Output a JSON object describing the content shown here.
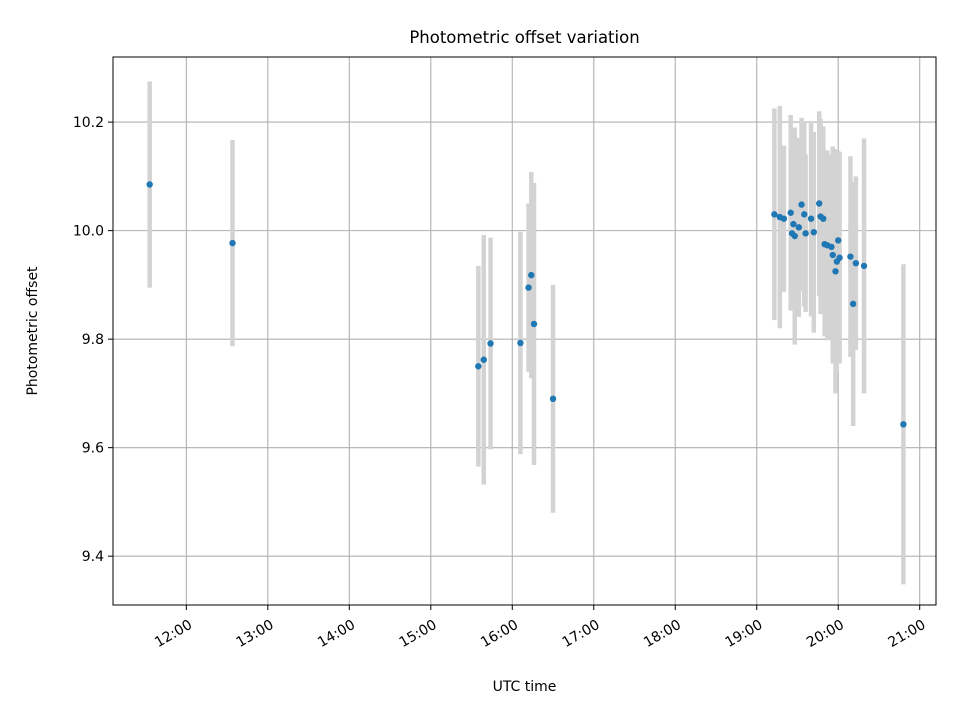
{
  "chart_data": {
    "type": "scatter",
    "title": "Photometric offset variation",
    "xlabel": "UTC time",
    "ylabel": "Photometric offset",
    "xlim": [
      "11:06",
      "21:12"
    ],
    "ylim": [
      9.31,
      10.32
    ],
    "grid": true,
    "x_ticks": [
      "12:00",
      "13:00",
      "14:00",
      "15:00",
      "16:00",
      "17:00",
      "18:00",
      "19:00",
      "20:00",
      "21:00"
    ],
    "y_ticks": [
      "9.4",
      "9.6",
      "9.8",
      "10.0",
      "10.2"
    ],
    "colors": {
      "points": "#1f77b4",
      "errorbars": "#d3d3d3",
      "grid": "#b0b0b0",
      "axes": "#000000"
    },
    "points": [
      {
        "x": "11:33",
        "y": 10.085,
        "err_low": 0.19,
        "err_high": 0.19
      },
      {
        "x": "12:34",
        "y": 9.977,
        "err_low": 0.19,
        "err_high": 0.19
      },
      {
        "x": "15:35",
        "y": 9.75,
        "err_low": 0.185,
        "err_high": 0.185
      },
      {
        "x": "15:39",
        "y": 9.762,
        "err_low": 0.23,
        "err_high": 0.23
      },
      {
        "x": "15:44",
        "y": 9.792,
        "err_low": 0.195,
        "err_high": 0.195
      },
      {
        "x": "16:06",
        "y": 9.793,
        "err_low": 0.205,
        "err_high": 0.205
      },
      {
        "x": "16:12",
        "y": 9.895,
        "err_low": 0.155,
        "err_high": 0.155
      },
      {
        "x": "16:14",
        "y": 9.918,
        "err_low": 0.19,
        "err_high": 0.19
      },
      {
        "x": "16:16",
        "y": 9.828,
        "err_low": 0.26,
        "err_high": 0.26
      },
      {
        "x": "16:30",
        "y": 9.69,
        "err_low": 0.21,
        "err_high": 0.21
      },
      {
        "x": "19:13",
        "y": 10.03,
        "err_low": 0.195,
        "err_high": 0.195
      },
      {
        "x": "19:17",
        "y": 10.025,
        "err_low": 0.205,
        "err_high": 0.205
      },
      {
        "x": "19:20",
        "y": 10.022,
        "err_low": 0.135,
        "err_high": 0.135
      },
      {
        "x": "19:25",
        "y": 10.033,
        "err_low": 0.18,
        "err_high": 0.18
      },
      {
        "x": "19:26",
        "y": 9.995,
        "err_low": 0.14,
        "err_high": 0.14
      },
      {
        "x": "19:27",
        "y": 10.012,
        "err_low": 0.16,
        "err_high": 0.16
      },
      {
        "x": "19:28",
        "y": 9.99,
        "err_low": 0.2,
        "err_high": 0.2
      },
      {
        "x": "19:31",
        "y": 10.006,
        "err_low": 0.165,
        "err_high": 0.165
      },
      {
        "x": "19:33",
        "y": 10.048,
        "err_low": 0.16,
        "err_high": 0.16
      },
      {
        "x": "19:35",
        "y": 10.03,
        "err_low": 0.17,
        "err_high": 0.17
      },
      {
        "x": "19:36",
        "y": 9.995,
        "err_low": 0.145,
        "err_high": 0.145
      },
      {
        "x": "19:40",
        "y": 10.022,
        "err_low": 0.18,
        "err_high": 0.18
      },
      {
        "x": "19:42",
        "y": 9.997,
        "err_low": 0.185,
        "err_high": 0.185
      },
      {
        "x": "19:46",
        "y": 10.05,
        "err_low": 0.17,
        "err_high": 0.17
      },
      {
        "x": "19:47",
        "y": 10.026,
        "err_low": 0.18,
        "err_high": 0.18
      },
      {
        "x": "19:49",
        "y": 10.022,
        "err_low": 0.17,
        "err_high": 0.17
      },
      {
        "x": "19:50",
        "y": 9.975,
        "err_low": 0.17,
        "err_high": 0.17
      },
      {
        "x": "19:52",
        "y": 9.973,
        "err_low": 0.175,
        "err_high": 0.175
      },
      {
        "x": "19:55",
        "y": 9.97,
        "err_low": 0.17,
        "err_high": 0.17
      },
      {
        "x": "19:56",
        "y": 9.955,
        "err_low": 0.2,
        "err_high": 0.2
      },
      {
        "x": "19:58",
        "y": 9.925,
        "err_low": 0.225,
        "err_high": 0.225
      },
      {
        "x": "19:59",
        "y": 9.943,
        "err_low": 0.205,
        "err_high": 0.205
      },
      {
        "x": "20:00",
        "y": 9.982,
        "err_low": 0.165,
        "err_high": 0.165
      },
      {
        "x": "20:01",
        "y": 9.95,
        "err_low": 0.195,
        "err_high": 0.195
      },
      {
        "x": "20:09",
        "y": 9.952,
        "err_low": 0.185,
        "err_high": 0.185
      },
      {
        "x": "20:11",
        "y": 9.865,
        "err_low": 0.225,
        "err_high": 0.225
      },
      {
        "x": "20:13",
        "y": 9.94,
        "err_low": 0.16,
        "err_high": 0.16
      },
      {
        "x": "20:19",
        "y": 9.935,
        "err_low": 0.235,
        "err_high": 0.235
      },
      {
        "x": "20:48",
        "y": 9.643,
        "err_low": 0.295,
        "err_high": 0.295
      }
    ]
  }
}
